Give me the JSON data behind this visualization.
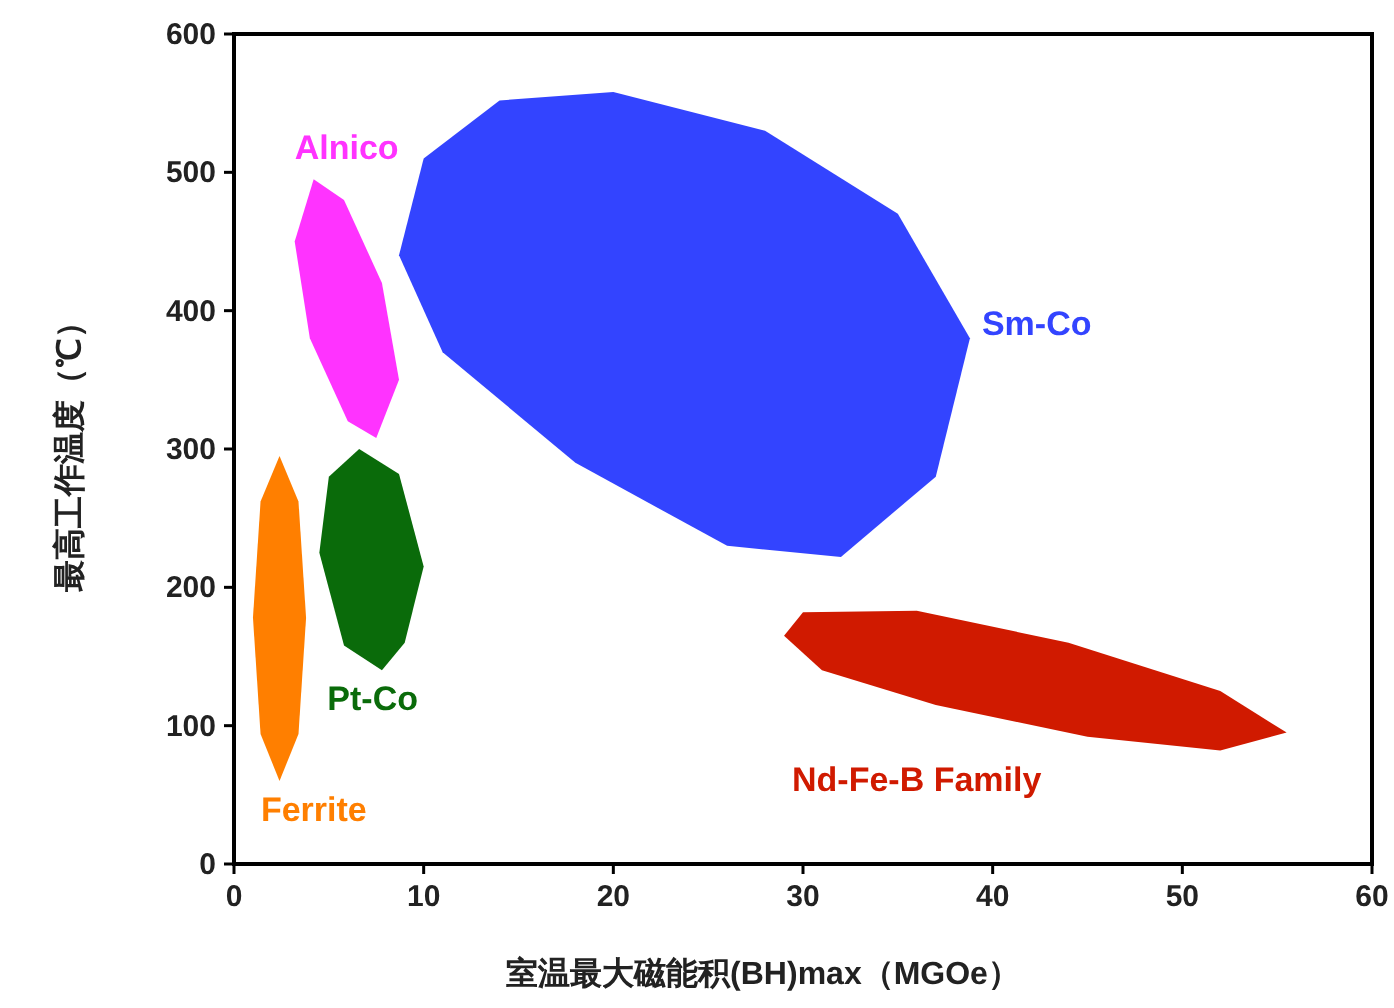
{
  "chart_data": {
    "type": "area",
    "xlabel": "室温最大磁能积(BH)max（MGOe）",
    "ylabel": "最高工作温度（℃）",
    "xlim": [
      0,
      60
    ],
    "ylim": [
      0,
      600
    ],
    "xticks": [
      0,
      10,
      20,
      30,
      40,
      50,
      60
    ],
    "yticks": [
      0,
      100,
      200,
      300,
      400,
      500,
      600
    ],
    "grid": false,
    "legend": false,
    "series": [
      {
        "name": "Alnico",
        "color": "#ff33ff",
        "x": [
          4.2,
          5.8,
          7.8,
          8.7,
          7.5,
          6,
          4,
          3.2
        ],
        "values": [
          495,
          480,
          420,
          350,
          308,
          320,
          380,
          450
        ]
      },
      {
        "name": "Sm-Co",
        "color": "#3344ff",
        "x": [
          14,
          20,
          28,
          35,
          38.8,
          37,
          32,
          26,
          18,
          11,
          8.7,
          10
        ],
        "values": [
          552,
          558,
          530,
          470,
          380,
          280,
          222,
          230,
          290,
          370,
          440,
          510
        ]
      },
      {
        "name": "Nd-Fe-B Family",
        "color": "#d01a00",
        "x": [
          30,
          36,
          44,
          52,
          55.5,
          52,
          45,
          37,
          31,
          29
        ],
        "values": [
          182,
          183,
          160,
          125,
          95,
          82,
          92,
          115,
          140,
          165
        ]
      },
      {
        "name": "Pt-Co",
        "color": "#0a6b0a",
        "x": [
          6.6,
          8.7,
          10,
          9,
          7.8,
          5.8,
          4.5,
          5.0
        ],
        "values": [
          300,
          282,
          215,
          160,
          140,
          158,
          225,
          280
        ]
      },
      {
        "name": "Ferrite",
        "color": "#ff7f00",
        "x": [
          2.4,
          3.4,
          3.8,
          3.4,
          2.4,
          1.4,
          1.0,
          1.4
        ],
        "values": [
          295,
          262,
          178,
          94,
          60,
          94,
          178,
          262
        ]
      }
    ]
  }
}
